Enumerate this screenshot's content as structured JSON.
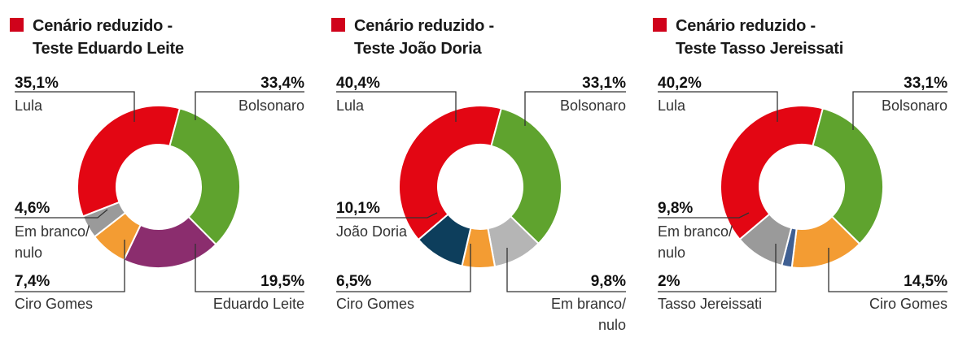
{
  "colors": {
    "Lula": "#e30613",
    "Bolsonaro": "#5fa32e",
    "Eduardo Leite": "#8b2d6e",
    "João Doria": "#0d3e5c",
    "Tasso Jereissati": "#3f5f92",
    "Ciro Gomes": "#f39c33",
    "Em branco/ nulo": "#9a9a9a",
    "Em branco/ nulo (light)": "#b5b5b5",
    "title_square": "#d0021b"
  },
  "chart_data": [
    {
      "type": "pie",
      "donut": true,
      "title": "Cenário reduzido -\nTeste Eduardo Leite",
      "slices": [
        {
          "name": "Lula",
          "value": 35.1,
          "pct_label": "35,1%",
          "label": "Lula",
          "color": "#e30613"
        },
        {
          "name": "Bolsonaro",
          "value": 33.4,
          "pct_label": "33,4%",
          "label": "Bolsonaro",
          "color": "#5fa32e"
        },
        {
          "name": "Eduardo Leite",
          "value": 19.5,
          "pct_label": "19,5%",
          "label": "Eduardo Leite",
          "color": "#8b2d6e"
        },
        {
          "name": "Ciro Gomes",
          "value": 7.4,
          "pct_label": "7,4%",
          "label": "Ciro Gomes",
          "color": "#f39c33"
        },
        {
          "name": "Em branco/ nulo",
          "value": 4.6,
          "pct_label": "4,6%",
          "label": "Em branco/\nnulo",
          "color": "#9a9a9a"
        }
      ]
    },
    {
      "type": "pie",
      "donut": true,
      "title": "Cenário reduzido -\nTeste João Doria",
      "slices": [
        {
          "name": "Lula",
          "value": 40.4,
          "pct_label": "40,4%",
          "label": "Lula",
          "color": "#e30613"
        },
        {
          "name": "Bolsonaro",
          "value": 33.1,
          "pct_label": "33,1%",
          "label": "Bolsonaro",
          "color": "#5fa32e"
        },
        {
          "name": "Em branco/ nulo",
          "value": 9.8,
          "pct_label": "9,8%",
          "label": "Em branco/\nnulo",
          "color": "#b5b5b5"
        },
        {
          "name": "Ciro Gomes",
          "value": 6.5,
          "pct_label": "6,5%",
          "label": "Ciro Gomes",
          "color": "#f39c33"
        },
        {
          "name": "João Doria",
          "value": 10.1,
          "pct_label": "10,1%",
          "label": "João Doria",
          "color": "#0d3e5c"
        }
      ]
    },
    {
      "type": "pie",
      "donut": true,
      "title": "Cenário reduzido -\nTeste Tasso Jereissati",
      "slices": [
        {
          "name": "Lula",
          "value": 40.2,
          "pct_label": "40,2%",
          "label": "Lula",
          "color": "#e30613"
        },
        {
          "name": "Bolsonaro",
          "value": 33.1,
          "pct_label": "33,1%",
          "label": "Bolsonaro",
          "color": "#5fa32e"
        },
        {
          "name": "Ciro Gomes",
          "value": 14.5,
          "pct_label": "14,5%",
          "label": "Ciro Gomes",
          "color": "#f39c33"
        },
        {
          "name": "Tasso Jereissati",
          "value": 2,
          "pct_label": "2%",
          "label": "Tasso Jereissati",
          "color": "#3f5f92"
        },
        {
          "name": "Em branco/ nulo",
          "value": 9.8,
          "pct_label": "9,8%",
          "label": "Em branco/\nnulo",
          "color": "#9a9a9a"
        }
      ]
    }
  ]
}
